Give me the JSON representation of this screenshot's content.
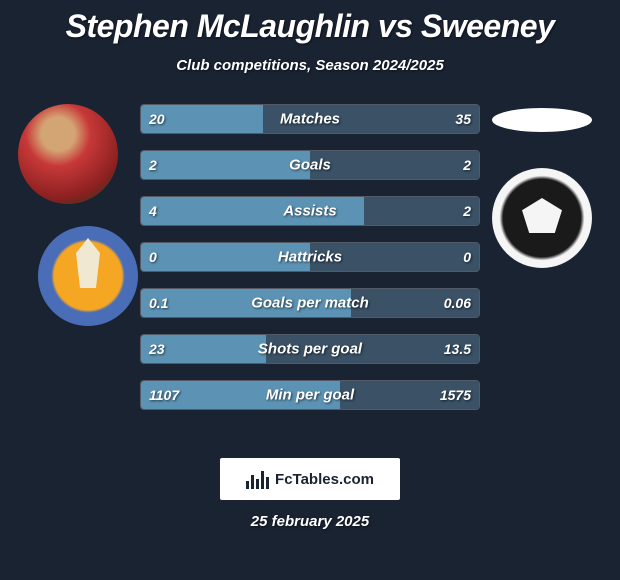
{
  "title": "Stephen McLaughlin vs Sweeney",
  "subtitle": "Club competitions, Season 2024/2025",
  "footer_brand": "FcTables.com",
  "footer_date": "25 february 2025",
  "colors": {
    "background": "#1a2332",
    "bar_left": "#5c92b3",
    "bar_right": "#3a5166",
    "text": "#ffffff"
  },
  "stats": [
    {
      "label": "Matches",
      "left_val": "20",
      "right_val": "35",
      "left_pct": 36
    },
    {
      "label": "Goals",
      "left_val": "2",
      "right_val": "2",
      "left_pct": 50
    },
    {
      "label": "Assists",
      "left_val": "4",
      "right_val": "2",
      "left_pct": 66
    },
    {
      "label": "Hattricks",
      "left_val": "0",
      "right_val": "0",
      "left_pct": 50
    },
    {
      "label": "Goals per match",
      "left_val": "0.1",
      "right_val": "0.06",
      "left_pct": 62
    },
    {
      "label": "Shots per goal",
      "left_val": "23",
      "right_val": "13.5",
      "left_pct": 37
    },
    {
      "label": "Min per goal",
      "left_val": "1107",
      "right_val": "1575",
      "left_pct": 59
    }
  ]
}
